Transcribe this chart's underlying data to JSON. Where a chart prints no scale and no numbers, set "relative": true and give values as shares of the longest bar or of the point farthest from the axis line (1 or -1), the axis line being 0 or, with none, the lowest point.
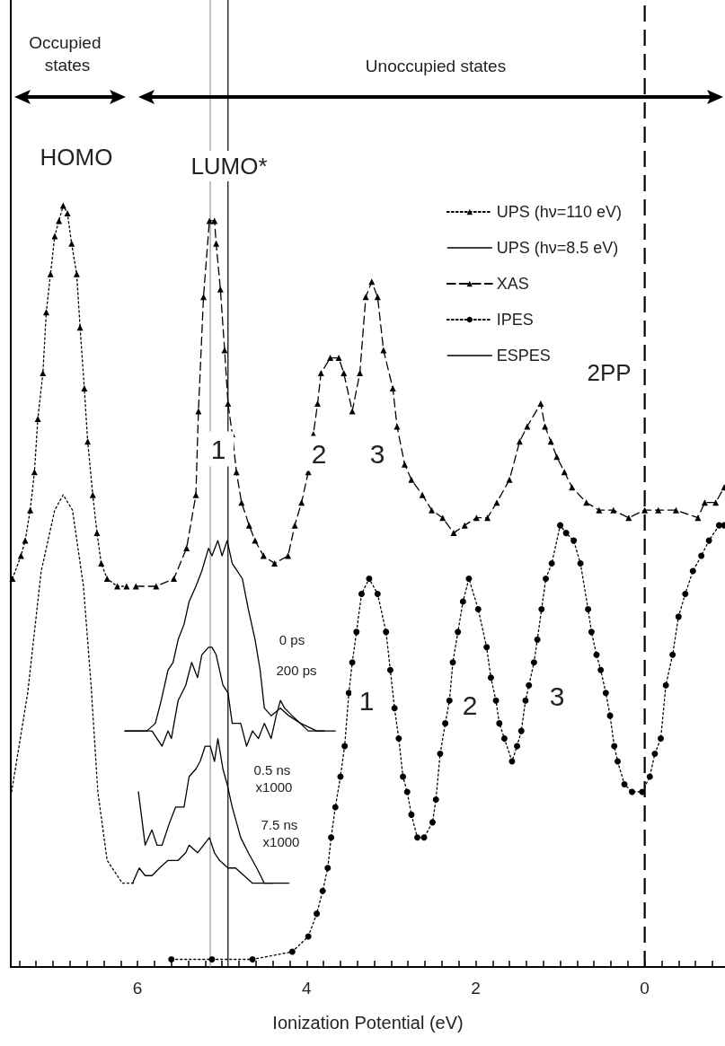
{
  "chart_data": {
    "type": "line",
    "relative": true,
    "xlabel": "Ionization Potential (eV)",
    "xlim": [
      7.5,
      -0.95
    ],
    "xticks": [
      {
        "value": 7.4,
        "label": null
      },
      {
        "value": 7.2,
        "label": null
      },
      {
        "value": 7,
        "label": null
      },
      {
        "value": 6.8,
        "label": null
      },
      {
        "value": 6.6,
        "label": null
      },
      {
        "value": 6.4,
        "label": null
      },
      {
        "value": 6.2,
        "label": null
      },
      6,
      {
        "value": 5.8,
        "label": null
      },
      {
        "value": 5.6,
        "label": null
      },
      {
        "value": 5.4,
        "label": null
      },
      {
        "value": 5.2,
        "label": null
      },
      {
        "value": 5,
        "label": null
      },
      {
        "value": 4.8,
        "label": null
      },
      {
        "value": 4.6,
        "label": null
      },
      {
        "value": 4.4,
        "label": null
      },
      {
        "value": 4.2,
        "label": null
      },
      4,
      {
        "value": 3.8,
        "label": null
      },
      {
        "value": 3.6,
        "label": null
      },
      {
        "value": 3.4,
        "label": null
      },
      {
        "value": 3.2,
        "label": null
      },
      {
        "value": 3,
        "label": null
      },
      {
        "value": 2.8,
        "label": null
      },
      {
        "value": 2.6,
        "label": null
      },
      {
        "value": 2.4,
        "label": null
      },
      {
        "value": 2.2,
        "label": null
      },
      2,
      {
        "value": 1.8,
        "label": null
      },
      {
        "value": 1.6,
        "label": null
      },
      {
        "value": 1.4,
        "label": null
      },
      {
        "value": 1.2,
        "label": null
      },
      {
        "value": 1,
        "label": null
      },
      {
        "value": 0.8,
        "label": null
      },
      {
        "value": 0.6,
        "label": null
      },
      {
        "value": 0.4,
        "label": null
      },
      {
        "value": 0.2,
        "label": null
      },
      0,
      {
        "value": -0.2,
        "label": null
      },
      {
        "value": -0.4,
        "label": null
      },
      {
        "value": -0.6,
        "label": null
      },
      {
        "value": -0.8,
        "label": null
      }
    ],
    "grid": false,
    "legend": "top right",
    "series": [
      {
        "name": "UPS (hν=110 eV)",
        "color": "#000000",
        "marker": "triangle",
        "line_style": "dotted",
        "x": [
          7.48,
          7.38,
          7.33,
          7.27,
          7.22,
          7.18,
          7.12,
          7.08,
          7.03,
          6.98,
          6.93,
          6.88,
          6.83,
          6.78,
          6.72,
          6.68,
          6.63,
          6.59,
          6.53,
          6.48,
          6.43,
          6.36,
          6.24,
          6.13
        ],
        "values": [
          0.51,
          0.54,
          0.56,
          0.6,
          0.65,
          0.72,
          0.78,
          0.86,
          0.91,
          0.96,
          0.98,
          1,
          0.99,
          0.95,
          0.91,
          0.84,
          0.76,
          0.69,
          0.62,
          0.57,
          0.53,
          0.51,
          0.5,
          0.5
        ]
      },
      {
        "name": "UPS (hν=8.5 eV)",
        "color": "#000000",
        "marker": "none",
        "line_style": "dotted",
        "x": [
          7.49,
          7.3,
          7.14,
          6.98,
          6.88,
          6.77,
          6.64,
          6.55,
          6.47,
          6.36,
          6.18,
          6.02
        ],
        "values": [
          0.23,
          0.36,
          0.52,
          0.6,
          0.62,
          0.6,
          0.5,
          0.37,
          0.23,
          0.14,
          0.11,
          0.11
        ]
      },
      {
        "name": "XAS",
        "color": "#000000",
        "marker": "triangle",
        "line_style": "dashed",
        "x": [
          6.02,
          5.78,
          5.57,
          5.42,
          5.31,
          5.28,
          5.22,
          5.15,
          5.09,
          5.07,
          5.02,
          4.97,
          4.93,
          4.88,
          4.83,
          4.77,
          4.68,
          4.61,
          4.51,
          4.38,
          4.22,
          4.14,
          4.06,
          3.98,
          3.92,
          3.87,
          3.83,
          3.72,
          3.62,
          3.56,
          3.46,
          3.37,
          3.3,
          3.23,
          3.16,
          3.09,
          2.98,
          2.93,
          2.84,
          2.76,
          2.63,
          2.52,
          2.39,
          2.26,
          2.13,
          1.99,
          1.86,
          1.75,
          1.6,
          1.48,
          1.39,
          1.23,
          1.18,
          1.11,
          1.04,
          0.95,
          0.86,
          0.69,
          0.54,
          0.37,
          0.19,
          0,
          -0.16,
          -0.37,
          -0.63,
          -0.71,
          -0.84,
          -0.94
        ],
        "values": [
          0.5,
          0.5,
          0.51,
          0.55,
          0.62,
          0.73,
          0.88,
          0.98,
          0.98,
          0.95,
          0.89,
          0.81,
          0.74,
          0.7,
          0.65,
          0.61,
          0.58,
          0.56,
          0.54,
          0.53,
          0.54,
          0.58,
          0.61,
          0.65,
          0.7,
          0.74,
          0.78,
          0.8,
          0.8,
          0.78,
          0.73,
          0.78,
          0.88,
          0.9,
          0.88,
          0.81,
          0.76,
          0.71,
          0.66,
          0.64,
          0.62,
          0.6,
          0.59,
          0.57,
          0.58,
          0.59,
          0.59,
          0.61,
          0.64,
          0.69,
          0.71,
          0.74,
          0.71,
          0.69,
          0.67,
          0.65,
          0.63,
          0.61,
          0.6,
          0.6,
          0.59,
          0.6,
          0.6,
          0.6,
          0.59,
          0.61,
          0.61,
          0.63
        ]
      },
      {
        "name": "IPES",
        "color": "#000000",
        "marker": "circle",
        "line_style": "dotted",
        "x": [
          5.6,
          5.12,
          4.64,
          4.17,
          3.98,
          3.88,
          3.81,
          3.75,
          3.71,
          3.66,
          3.6,
          3.55,
          3.5,
          3.46,
          3.41,
          3.35,
          3.26,
          3.16,
          3.06,
          3.01,
          2.96,
          2.91,
          2.86,
          2.81,
          2.76,
          2.69,
          2.61,
          2.51,
          2.47,
          2.42,
          2.36,
          2.31,
          2.27,
          2.21,
          2.15,
          2.08,
          1.97,
          1.87,
          1.82,
          1.76,
          1.72,
          1.66,
          1.57,
          1.51,
          1.46,
          1.41,
          1.37,
          1.31,
          1.27,
          1.22,
          1.17,
          1.1,
          1,
          0.93,
          0.84,
          0.76,
          0.67,
          0.63,
          0.57,
          0.52,
          0.46,
          0.41,
          0.36,
          0.32,
          0.24,
          0.15,
          0.03,
          -0.06,
          -0.12,
          -0.19,
          -0.25,
          -0.33,
          -0.4,
          -0.48,
          -0.57,
          -0.67,
          -0.76,
          -0.88,
          -0.94
        ],
        "values": [
          0.01,
          0.01,
          0.01,
          0.02,
          0.04,
          0.07,
          0.1,
          0.13,
          0.17,
          0.21,
          0.25,
          0.29,
          0.36,
          0.4,
          0.44,
          0.49,
          0.51,
          0.49,
          0.44,
          0.39,
          0.34,
          0.3,
          0.25,
          0.23,
          0.2,
          0.17,
          0.17,
          0.19,
          0.22,
          0.28,
          0.32,
          0.35,
          0.4,
          0.44,
          0.48,
          0.51,
          0.47,
          0.42,
          0.38,
          0.35,
          0.32,
          0.3,
          0.27,
          0.29,
          0.31,
          0.35,
          0.37,
          0.4,
          0.43,
          0.47,
          0.51,
          0.53,
          0.58,
          0.57,
          0.56,
          0.53,
          0.47,
          0.44,
          0.41,
          0.39,
          0.36,
          0.33,
          0.29,
          0.27,
          0.24,
          0.23,
          0.23,
          0.25,
          0.28,
          0.3,
          0.37,
          0.41,
          0.46,
          0.49,
          0.52,
          0.54,
          0.56,
          0.58,
          0.58
        ]
      },
      {
        "name": "ESPES",
        "color": "#000000",
        "marker": "none",
        "line_style": "solid",
        "x": [
          6.15,
          5.89,
          5.79,
          5.72,
          5.64,
          5.58,
          5.52,
          5.45,
          5.39,
          5.31,
          5.24,
          5.16,
          5.12,
          5.05,
          5,
          4.94,
          4.88,
          4.76,
          4.69,
          4.61,
          4.55,
          4.5,
          4.42,
          4.31,
          4.21,
          4.07,
          3.88,
          3.66
        ],
        "values": [
          0.31,
          0.31,
          0.32,
          0.35,
          0.39,
          0.4,
          0.43,
          0.45,
          0.48,
          0.5,
          0.52,
          0.55,
          0.54,
          0.56,
          0.54,
          0.56,
          0.53,
          0.51,
          0.47,
          0.43,
          0.39,
          0.34,
          0.33,
          0.34,
          0.33,
          0.32,
          0.31,
          0.31
        ]
      },
      {
        "color": "#000000",
        "marker": "none",
        "line_style": "solid",
        "x": [
          6.15,
          5.83,
          5.77,
          5.71,
          5.64,
          5.6,
          5.52,
          5.43,
          5.36,
          5.29,
          5.24,
          5.16,
          5.12,
          5.07,
          4.99,
          4.93,
          4.88,
          4.78,
          4.71,
          4.64,
          4.57,
          4.5,
          4.42,
          4.36,
          4.31,
          4.26,
          4.17,
          3.98,
          3.79
        ],
        "values": [
          0.31,
          0.31,
          0.3,
          0.29,
          0.31,
          0.3,
          0.35,
          0.37,
          0.4,
          0.38,
          0.41,
          0.42,
          0.42,
          0.41,
          0.37,
          0.36,
          0.32,
          0.32,
          0.29,
          0.31,
          0.3,
          0.32,
          0.3,
          0.33,
          0.35,
          0.34,
          0.33,
          0.31,
          0.31
        ]
      },
      {
        "color": "#000000",
        "marker": "none",
        "line_style": "solid",
        "x": [
          5.99,
          5.91,
          5.83,
          5.77,
          5.71,
          5.62,
          5.55,
          5.45,
          5.39,
          5.31,
          5.26,
          5.2,
          5.14,
          5.09,
          5.05,
          4.99,
          4.94,
          4.88,
          4.78,
          4.69,
          4.59,
          4.5,
          4.4
        ],
        "values": [
          0.23,
          0.16,
          0.18,
          0.16,
          0.16,
          0.19,
          0.21,
          0.21,
          0.25,
          0.26,
          0.27,
          0.29,
          0.29,
          0.27,
          0.3,
          0.26,
          0.24,
          0.21,
          0.17,
          0.15,
          0.13,
          0.11,
          0.11
        ]
      },
      {
        "color": "#000000",
        "marker": "none",
        "line_style": "solid",
        "x": [
          6.06,
          5.98,
          5.91,
          5.83,
          5.74,
          5.64,
          5.52,
          5.43,
          5.39,
          5.29,
          5.22,
          5.15,
          5.09,
          5.03,
          4.93,
          4.84,
          4.74,
          4.64,
          4.55,
          4.45,
          4.21
        ],
        "values": [
          0.11,
          0.13,
          0.12,
          0.12,
          0.13,
          0.14,
          0.14,
          0.15,
          0.16,
          0.15,
          0.16,
          0.17,
          0.15,
          0.14,
          0.13,
          0.13,
          0.12,
          0.11,
          0.11,
          0.11,
          0.11
        ]
      }
    ],
    "ref_lines": [
      {
        "axis": "x",
        "value": 0,
        "color": "#000000",
        "line_style": "dashed"
      },
      {
        "axis": "x",
        "value": 5.14,
        "color": "#999999",
        "line_style": "solid"
      },
      {
        "axis": "x",
        "value": 4.93,
        "color": "#000000",
        "line_style": "solid"
      }
    ],
    "annotations": [
      "Occupied states",
      "Unoccupied states",
      "0 ps",
      "200 ps",
      "0.5 ns x1000",
      "7.5 ns x1000",
      "HOMO",
      "LUMO*",
      "1",
      "2",
      "3",
      "2PP",
      "1",
      "2",
      "3"
    ]
  }
}
